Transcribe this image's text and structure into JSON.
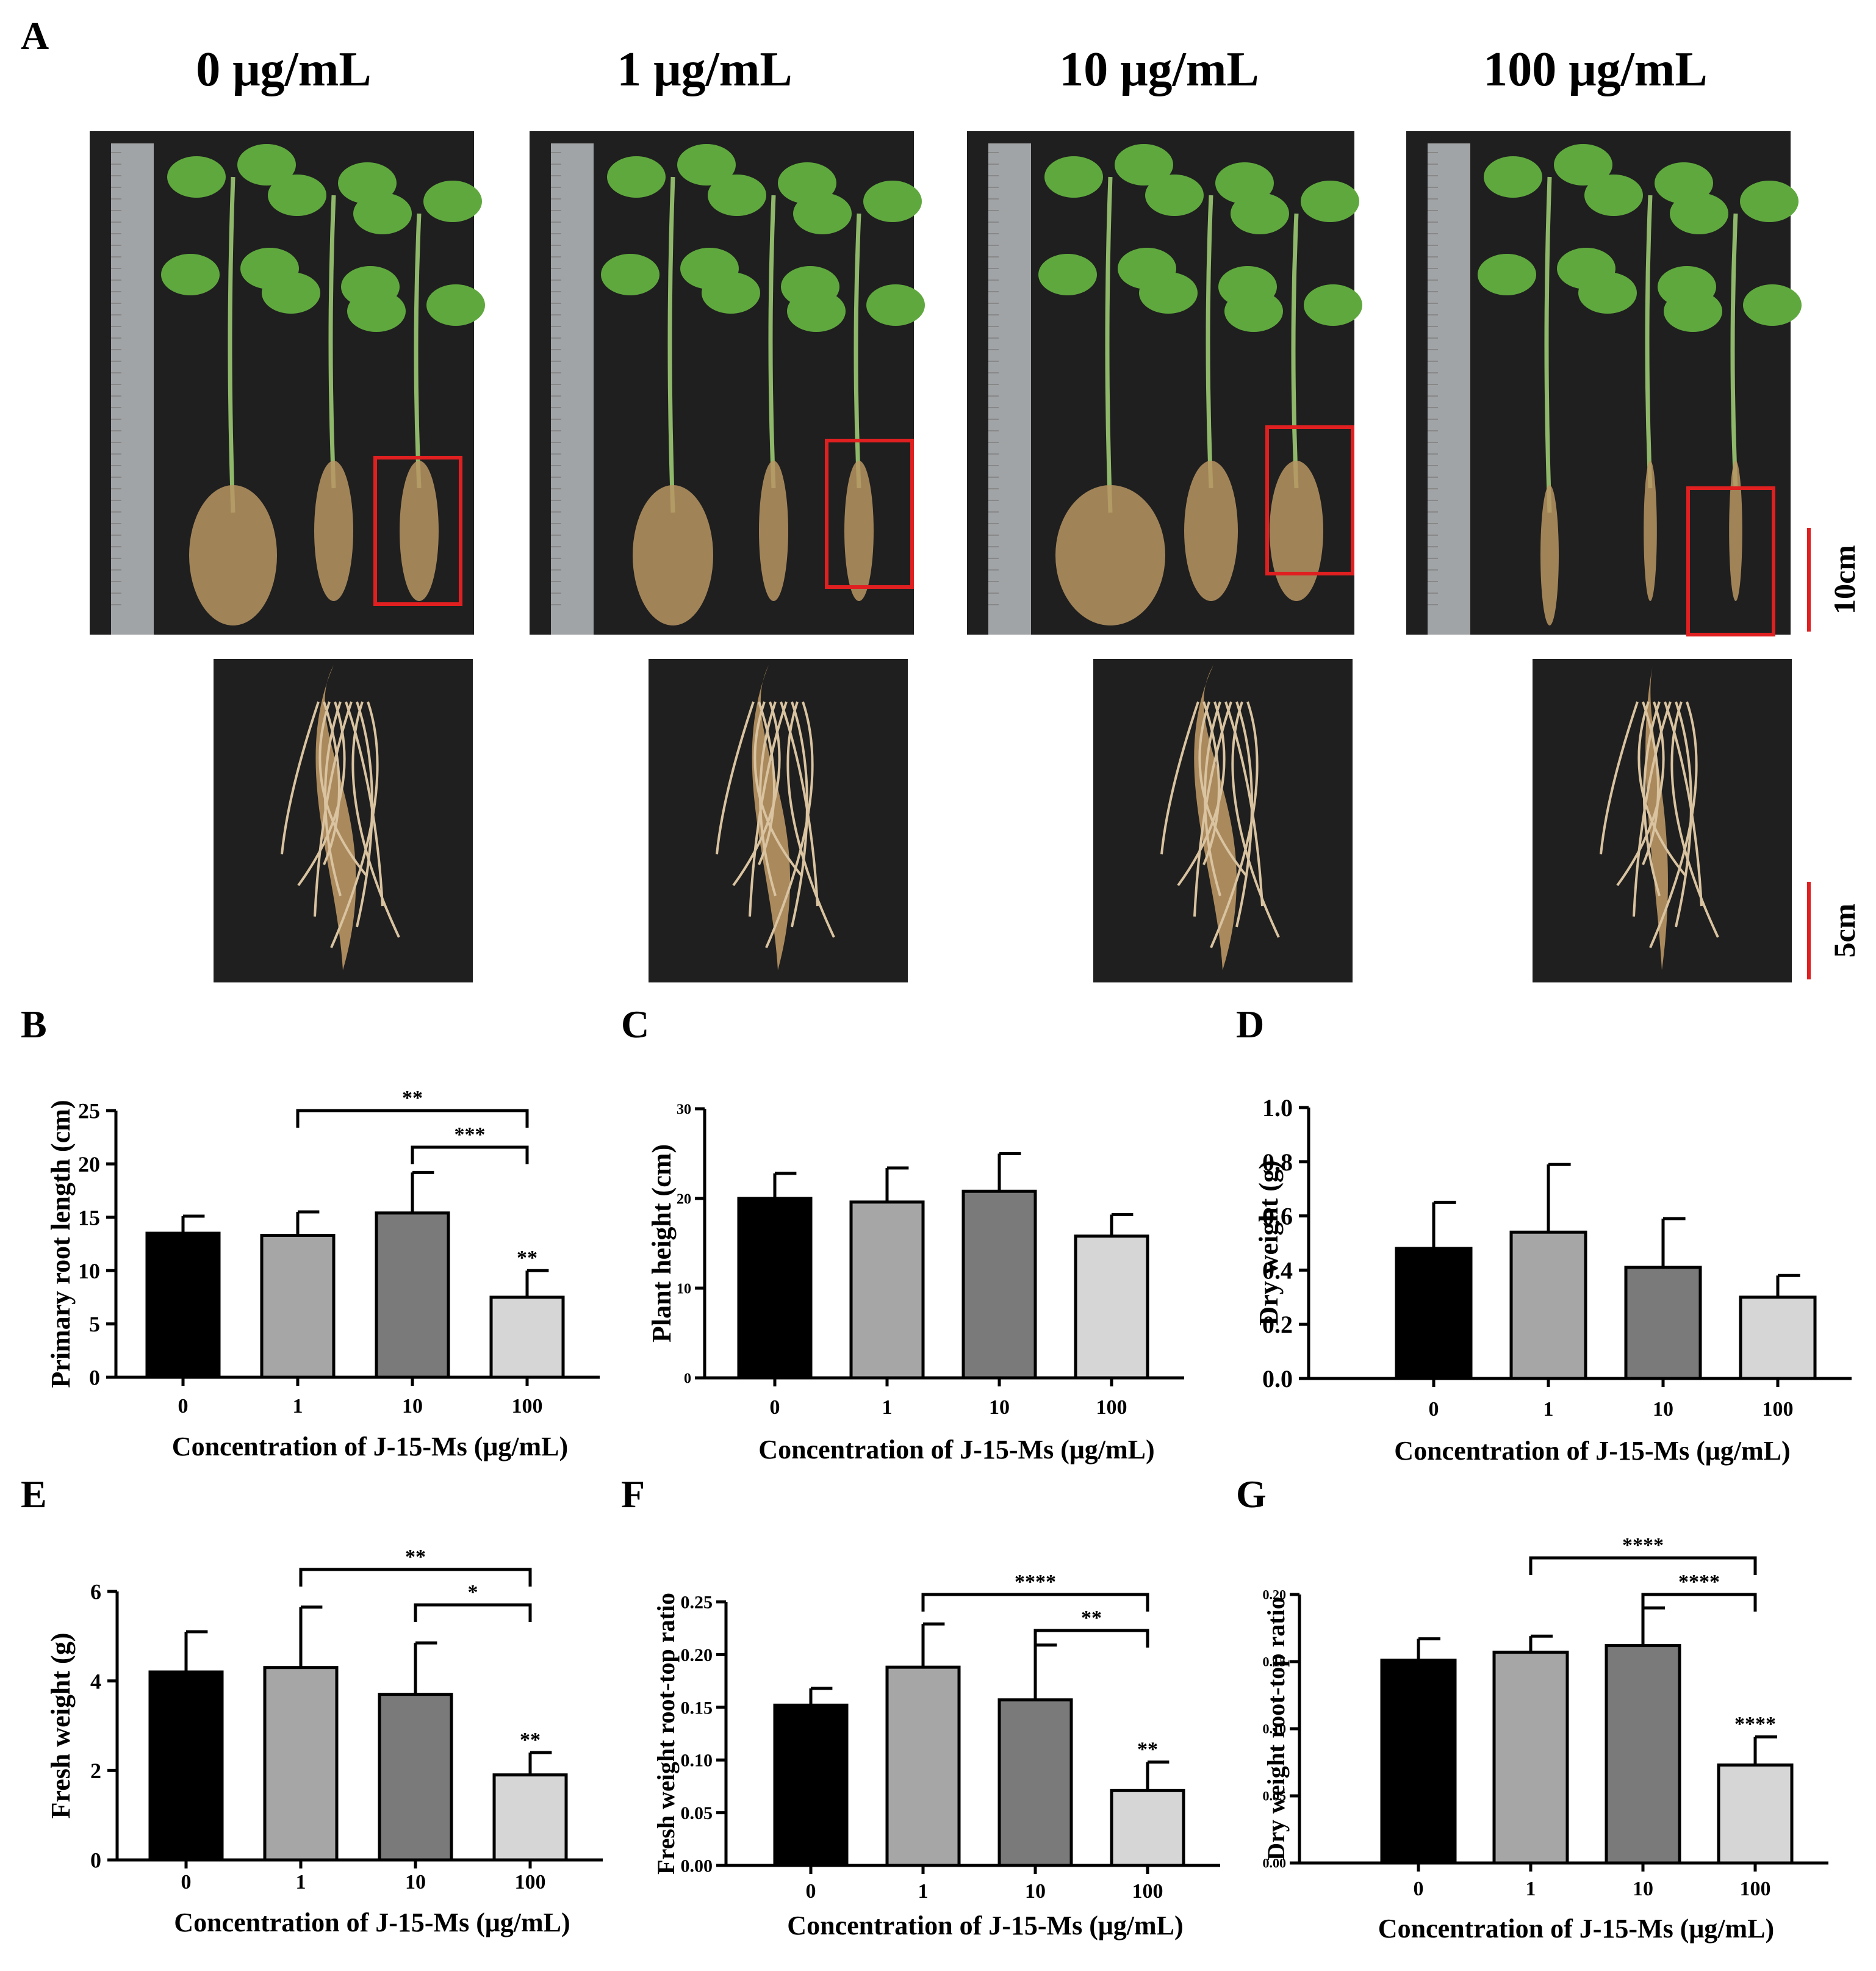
{
  "panel_a": {
    "letter": "A",
    "concentrations": [
      "0 μg/mL",
      "1 μg/mL",
      "10 μg/mL",
      "100 μg/mL"
    ],
    "scale_bars": [
      "10cm",
      "5cm"
    ],
    "colors": {
      "background": "#1f1f1f",
      "ruler": "#b8bcc0",
      "leaf": "#5fa83e",
      "root": "#b99563",
      "highlight_box": "#e02020",
      "scale_bar": "#e02020"
    }
  },
  "chart_data": [
    {
      "panel": "B",
      "type": "bar",
      "categories": [
        "0",
        "1",
        "10",
        "100"
      ],
      "values": [
        13.5,
        13.3,
        15.4,
        7.5
      ],
      "errors": [
        1.6,
        2.2,
        3.8,
        2.5
      ],
      "xlabel": "Concentration of J-15-Ms (μg/mL)",
      "ylabel": "Primary root length (cm)",
      "ylim": [
        0,
        25
      ],
      "yticks": [
        "0",
        "5",
        "10",
        "15",
        "20",
        "25"
      ],
      "bar_colors": [
        "#000000",
        "#a6a6a6",
        "#7a7a7a",
        "#d6d6d6"
      ],
      "bar_labels": [
        "",
        "",
        "",
        "**"
      ],
      "comparisons": [
        {
          "from": "1",
          "to": "100",
          "label": "**"
        },
        {
          "from": "10",
          "to": "100",
          "label": "***"
        }
      ]
    },
    {
      "panel": "C",
      "type": "bar",
      "categories": [
        "0",
        "1",
        "10",
        "100"
      ],
      "values": [
        20.0,
        19.6,
        20.8,
        15.8
      ],
      "errors": [
        2.8,
        3.8,
        4.2,
        2.4
      ],
      "xlabel": "Concentration of J-15-Ms (μg/mL)",
      "ylabel": "Plant height (cm)",
      "ylim": [
        0,
        30
      ],
      "yticks": [
        "0",
        "10",
        "20",
        "30"
      ],
      "bar_colors": [
        "#000000",
        "#a6a6a6",
        "#7a7a7a",
        "#d6d6d6"
      ],
      "bar_labels": [
        "",
        "",
        "",
        ""
      ],
      "comparisons": []
    },
    {
      "panel": "D",
      "type": "bar",
      "categories": [
        "0",
        "1",
        "10",
        "100"
      ],
      "values": [
        0.48,
        0.54,
        0.41,
        0.3
      ],
      "errors": [
        0.17,
        0.25,
        0.18,
        0.08
      ],
      "xlabel": "Concentration of J-15-Ms (μg/mL)",
      "ylabel": "Dry weight (g)",
      "ylim": [
        0,
        1.0
      ],
      "yticks": [
        "0.0",
        "0.2",
        "0.4",
        "0.6",
        "0.8",
        "1.0"
      ],
      "bar_colors": [
        "#000000",
        "#a6a6a6",
        "#7a7a7a",
        "#d6d6d6"
      ],
      "bar_labels": [
        "",
        "",
        "",
        ""
      ],
      "comparisons": []
    },
    {
      "panel": "E",
      "type": "bar",
      "categories": [
        "0",
        "1",
        "10",
        "100"
      ],
      "values": [
        4.2,
        4.3,
        3.7,
        1.9
      ],
      "errors": [
        0.9,
        1.35,
        1.15,
        0.5
      ],
      "xlabel": "Concentration of J-15-Ms (μg/mL)",
      "ylabel": "Fresh weight (g)",
      "ylim": [
        0,
        6
      ],
      "yticks": [
        "0",
        "2",
        "4",
        "6"
      ],
      "bar_colors": [
        "#000000",
        "#a6a6a6",
        "#7a7a7a",
        "#d6d6d6"
      ],
      "bar_labels": [
        "",
        "",
        "",
        "**"
      ],
      "comparisons": [
        {
          "from": "1",
          "to": "100",
          "label": "**"
        },
        {
          "from": "10",
          "to": "100",
          "label": "*"
        }
      ]
    },
    {
      "panel": "F",
      "type": "bar",
      "categories": [
        "0",
        "1",
        "10",
        "100"
      ],
      "values": [
        0.152,
        0.188,
        0.157,
        0.071
      ],
      "errors": [
        0.016,
        0.041,
        0.052,
        0.027
      ],
      "xlabel": "Concentration of J-15-Ms (μg/mL)",
      "ylabel": "Fresh weight root-top ratio",
      "ylim": [
        0,
        0.25
      ],
      "yticks": [
        "0.00",
        "0.05",
        "0.10",
        "0.15",
        "0.20",
        "0.25"
      ],
      "bar_colors": [
        "#000000",
        "#a6a6a6",
        "#7a7a7a",
        "#d6d6d6"
      ],
      "bar_labels": [
        "",
        "",
        "",
        "**"
      ],
      "comparisons": [
        {
          "from": "1",
          "to": "100",
          "label": "****"
        },
        {
          "from": "10",
          "to": "100",
          "label": "**"
        }
      ]
    },
    {
      "panel": "G",
      "type": "bar",
      "categories": [
        "0",
        "1",
        "10",
        "100"
      ],
      "values": [
        0.151,
        0.157,
        0.162,
        0.073
      ],
      "errors": [
        0.016,
        0.012,
        0.028,
        0.021
      ],
      "xlabel": "Concentration of J-15-Ms (μg/mL)",
      "ylabel": "Dry weight root-top ratio",
      "ylim": [
        0,
        0.2
      ],
      "yticks": [
        "0.00",
        "0.05",
        "0.10",
        "0.15",
        "0.20"
      ],
      "bar_colors": [
        "#000000",
        "#a6a6a6",
        "#7a7a7a",
        "#d6d6d6"
      ],
      "bar_labels": [
        "",
        "",
        "",
        "****"
      ],
      "comparisons": [
        {
          "from": "1",
          "to": "100",
          "label": "****"
        },
        {
          "from": "10",
          "to": "100",
          "label": "****"
        }
      ]
    }
  ]
}
